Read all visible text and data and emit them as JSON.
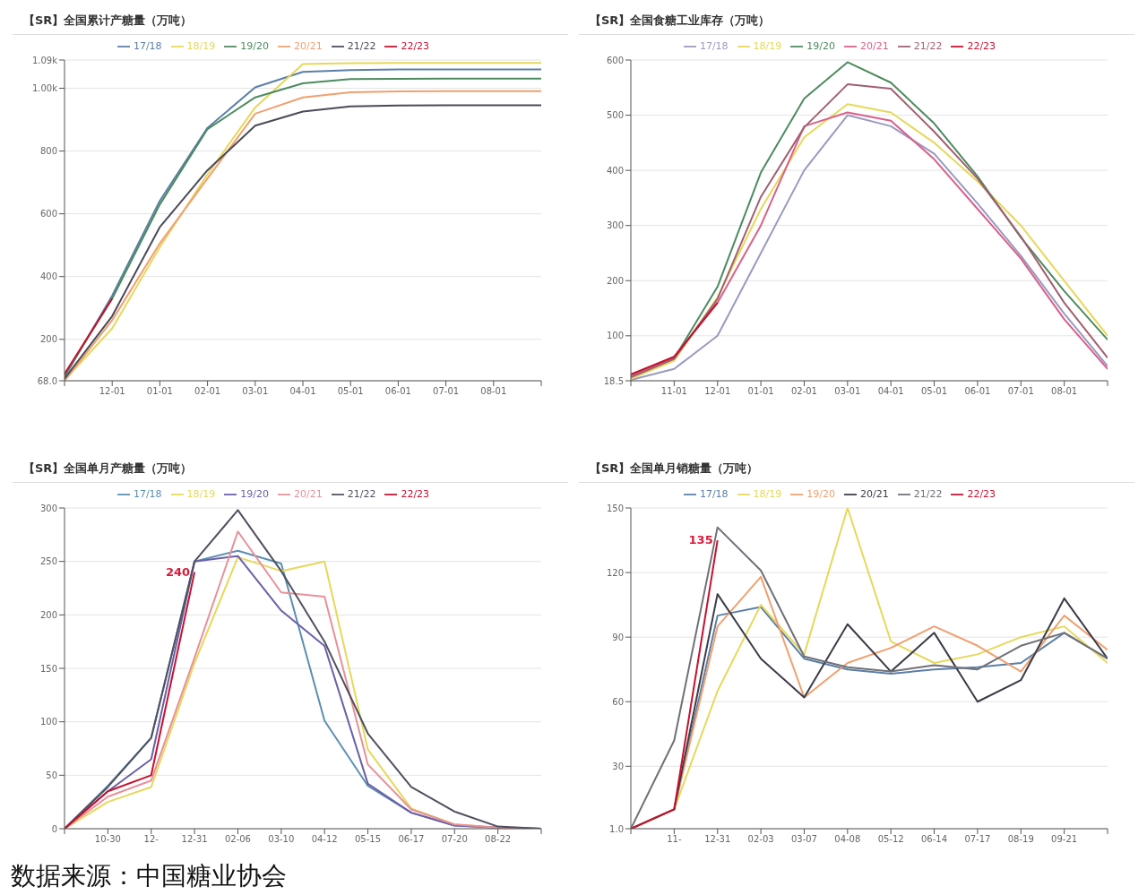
{
  "chart_data": [
    {
      "type": "line",
      "title": "【SR】全国累计产糖量（万吨）",
      "categories": [
        null,
        "12-01",
        "01-01",
        "02-01",
        "03-01",
        "04-01",
        "05-01",
        "06-01",
        "07-01",
        "08-01",
        null
      ],
      "series": [
        {
          "name": "17/18",
          "color": "#5b7fa8",
          "values": [
            80,
            339,
            642,
            874,
            1003,
            1052,
            1058,
            1060,
            1060,
            1060,
            1060
          ]
        },
        {
          "name": "18/19",
          "color": "#e6d85a",
          "values": [
            70,
            235,
            494,
            726,
            939,
            1077,
            1080,
            1081,
            1081,
            1081,
            1081
          ]
        },
        {
          "name": "19/20",
          "color": "#4d8a5f",
          "values": [
            85,
            330,
            630,
            870,
            971,
            1016,
            1029,
            1030,
            1031,
            1031,
            1031
          ]
        },
        {
          "name": "20/21",
          "color": "#f0a070",
          "values": [
            68,
            261,
            506,
            713,
            919,
            971,
            987,
            990,
            991,
            991,
            991
          ]
        },
        {
          "name": "21/22",
          "color": "#4a4a5a",
          "values": [
            75,
            274,
            558,
            739,
            881,
            926,
            942,
            945,
            946,
            946,
            946
          ]
        },
        {
          "name": "22/23",
          "color": "#c8102e",
          "values": [
            90,
            330,
            null,
            null,
            null,
            null,
            null,
            null,
            null,
            null,
            null
          ]
        }
      ],
      "ylim": [
        68,
        1090
      ],
      "yticks": [
        {
          "value": 68,
          "label": "68.0"
        },
        200,
        400,
        600,
        800,
        {
          "value": 1000,
          "label": "1.00k"
        },
        {
          "value": 1090,
          "label": "1.09k"
        }
      ],
      "grid": "y",
      "legend": "top"
    },
    {
      "type": "line",
      "title": "【SR】全国食糖工业库存（万吨）",
      "categories": [
        null,
        "11-01",
        "12-01",
        "01-01",
        "02-01",
        "03-01",
        "04-01",
        "05-01",
        "06-01",
        "07-01",
        "08-01",
        null
      ],
      "series": [
        {
          "name": "17/18",
          "color": "#9a9ac0",
          "values": [
            20,
            40,
            100,
            250,
            400,
            500,
            480,
            430,
            340,
            245,
            140,
            45
          ]
        },
        {
          "name": "18/19",
          "color": "#e6d85a",
          "values": [
            22,
            55,
            170,
            330,
            460,
            520,
            505,
            450,
            380,
            300,
            200,
            100
          ]
        },
        {
          "name": "19/20",
          "color": "#4d8a5f",
          "values": [
            26,
            59,
            189,
            396,
            530,
            596,
            559,
            485,
            389,
            278,
            181,
            93
          ]
        },
        {
          "name": "20/21",
          "color": "#d9608a",
          "values": [
            28,
            62,
            160,
            300,
            480,
            505,
            490,
            420,
            330,
            240,
            130,
            40
          ]
        },
        {
          "name": "21/22",
          "color": "#a06070",
          "values": [
            25,
            58,
            167,
            352,
            478,
            556,
            548,
            470,
            385,
            280,
            160,
            60
          ]
        },
        {
          "name": "22/23",
          "color": "#c8102e",
          "values": [
            30,
            62,
            160,
            null,
            null,
            null,
            null,
            null,
            null,
            null,
            null,
            null
          ]
        }
      ],
      "ylim": [
        18.5,
        600
      ],
      "yticks": [
        {
          "value": 18.5,
          "label": "18.5"
        },
        100,
        200,
        300,
        400,
        500,
        600
      ],
      "grid": "y",
      "legend": "top"
    },
    {
      "type": "line",
      "title": "【SR】全国单月产糖量（万吨）",
      "categories": [
        null,
        "10-30",
        "12-",
        "12-31",
        "02-06",
        "03-10",
        "04-12",
        "05-15",
        "06-17",
        "07-20",
        "08-22",
        null
      ],
      "series": [
        {
          "name": "17/18",
          "color": "#5b8fb0",
          "values": [
            0,
            40,
            85,
            250,
            260,
            248,
            101,
            40,
            15,
            3,
            1,
            0
          ]
        },
        {
          "name": "18/19",
          "color": "#e6d85a",
          "values": [
            0,
            25,
            39,
            155,
            254,
            241,
            250,
            74,
            19,
            4,
            1,
            0
          ]
        },
        {
          "name": "19/20",
          "color": "#6a5fa8",
          "values": [
            0,
            35,
            65,
            250,
            255,
            204,
            171,
            42,
            15,
            3,
            1,
            0
          ]
        },
        {
          "name": "20/21",
          "color": "#e8909a",
          "values": [
            0,
            30,
            45,
            160,
            278,
            221,
            217,
            60,
            18,
            4,
            1,
            0
          ]
        },
        {
          "name": "21/22",
          "color": "#505060",
          "values": [
            0,
            39,
            85,
            250,
            298,
            241,
            175,
            89,
            39,
            16,
            2,
            0
          ]
        },
        {
          "name": "22/23",
          "color": "#c8102e",
          "values": [
            0,
            35,
            50,
            240,
            null,
            null,
            null,
            null,
            null,
            null,
            null,
            null
          ]
        }
      ],
      "ylim": [
        0,
        300
      ],
      "yticks": [
        0,
        50,
        100,
        150,
        200,
        250,
        300
      ],
      "grid": "y",
      "legend": "top",
      "annotations": [
        {
          "text": "240",
          "x": "12-31",
          "y": 240
        },
        "数据来源：中国糖业协会"
      ]
    },
    {
      "type": "line",
      "title": "【SR】全国单月销糖量（万吨）",
      "categories": [
        null,
        "11-",
        "12-31",
        "02-03",
        "03-07",
        "04-08",
        "05-12",
        "06-14",
        "07-17",
        "08-19",
        "09-21",
        null
      ],
      "series": [
        {
          "name": "17/18",
          "color": "#5b7fa8",
          "values": [
            1,
            10,
            100,
            104,
            80,
            75,
            73,
            75,
            76,
            78,
            92,
            80
          ]
        },
        {
          "name": "18/19",
          "color": "#e6d85a",
          "values": [
            1,
            10,
            65,
            105,
            82,
            150,
            88,
            78,
            82,
            90,
            95,
            78
          ]
        },
        {
          "name": "19/20",
          "color": "#f0a070",
          "values": [
            1,
            10,
            95,
            118,
            62,
            78,
            85,
            95,
            86,
            74,
            100,
            84
          ]
        },
        {
          "name": "20/21",
          "color": "#3c3c48",
          "values": [
            1,
            10,
            110,
            80,
            62,
            96,
            74,
            92,
            60,
            70,
            108,
            80
          ]
        },
        {
          "name": "21/22",
          "color": "#707078",
          "values": [
            1,
            42,
            141,
            121,
            81,
            76,
            74,
            77,
            75,
            86,
            92,
            80
          ]
        },
        {
          "name": "22/23",
          "color": "#c8102e",
          "values": [
            1,
            10,
            135,
            null,
            null,
            null,
            null,
            null,
            null,
            null,
            null,
            null
          ]
        }
      ],
      "ylim": [
        1,
        150
      ],
      "yticks": [
        {
          "value": 1,
          "label": "1.0"
        },
        30,
        60,
        90,
        120,
        150
      ],
      "grid": "y",
      "legend": "top",
      "annotations": [
        {
          "text": "135",
          "x": "12-31",
          "y": 135
        }
      ]
    }
  ]
}
